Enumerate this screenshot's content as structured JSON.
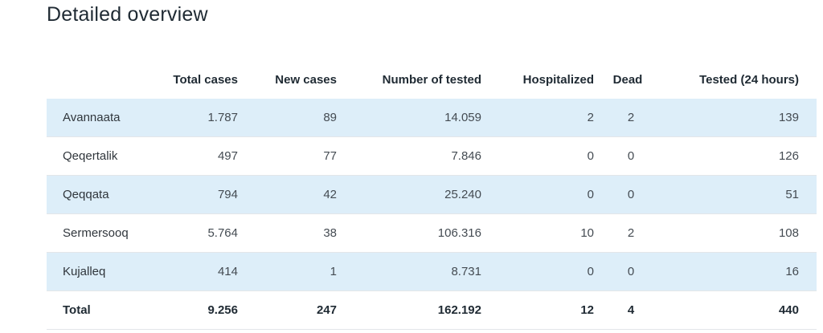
{
  "page": {
    "title": "Detailed overview"
  },
  "table": {
    "headers": {
      "name": "",
      "total_cases": "Total cases",
      "new_cases": "New cases",
      "number_tested": "Number of tested",
      "hospitalized": "Hospitalized",
      "dead": "Dead",
      "tested_24h": "Tested (24 hours)"
    },
    "rows": [
      {
        "name": "Avannaata",
        "total_cases": "1.787",
        "new_cases": "89",
        "number_tested": "14.059",
        "hospitalized": "2",
        "dead": "2",
        "tested_24h": "139"
      },
      {
        "name": "Qeqertalik",
        "total_cases": "497",
        "new_cases": "77",
        "number_tested": "7.846",
        "hospitalized": "0",
        "dead": "0",
        "tested_24h": "126"
      },
      {
        "name": "Qeqqata",
        "total_cases": "794",
        "new_cases": "42",
        "number_tested": "25.240",
        "hospitalized": "0",
        "dead": "0",
        "tested_24h": "51"
      },
      {
        "name": "Sermersooq",
        "total_cases": "5.764",
        "new_cases": "38",
        "number_tested": "106.316",
        "hospitalized": "10",
        "dead": "2",
        "tested_24h": "108"
      },
      {
        "name": "Kujalleq",
        "total_cases": "414",
        "new_cases": "1",
        "number_tested": "8.731",
        "hospitalized": "0",
        "dead": "0",
        "tested_24h": "16"
      }
    ],
    "total": {
      "name": "Total",
      "total_cases": "9.256",
      "new_cases": "247",
      "number_tested": "162.192",
      "hospitalized": "12",
      "dead": "4",
      "tested_24h": "440"
    }
  },
  "colors": {
    "row_shade": "#ddeef9",
    "divider": "#e3e6e9",
    "heading_text": "#1f2a33"
  }
}
